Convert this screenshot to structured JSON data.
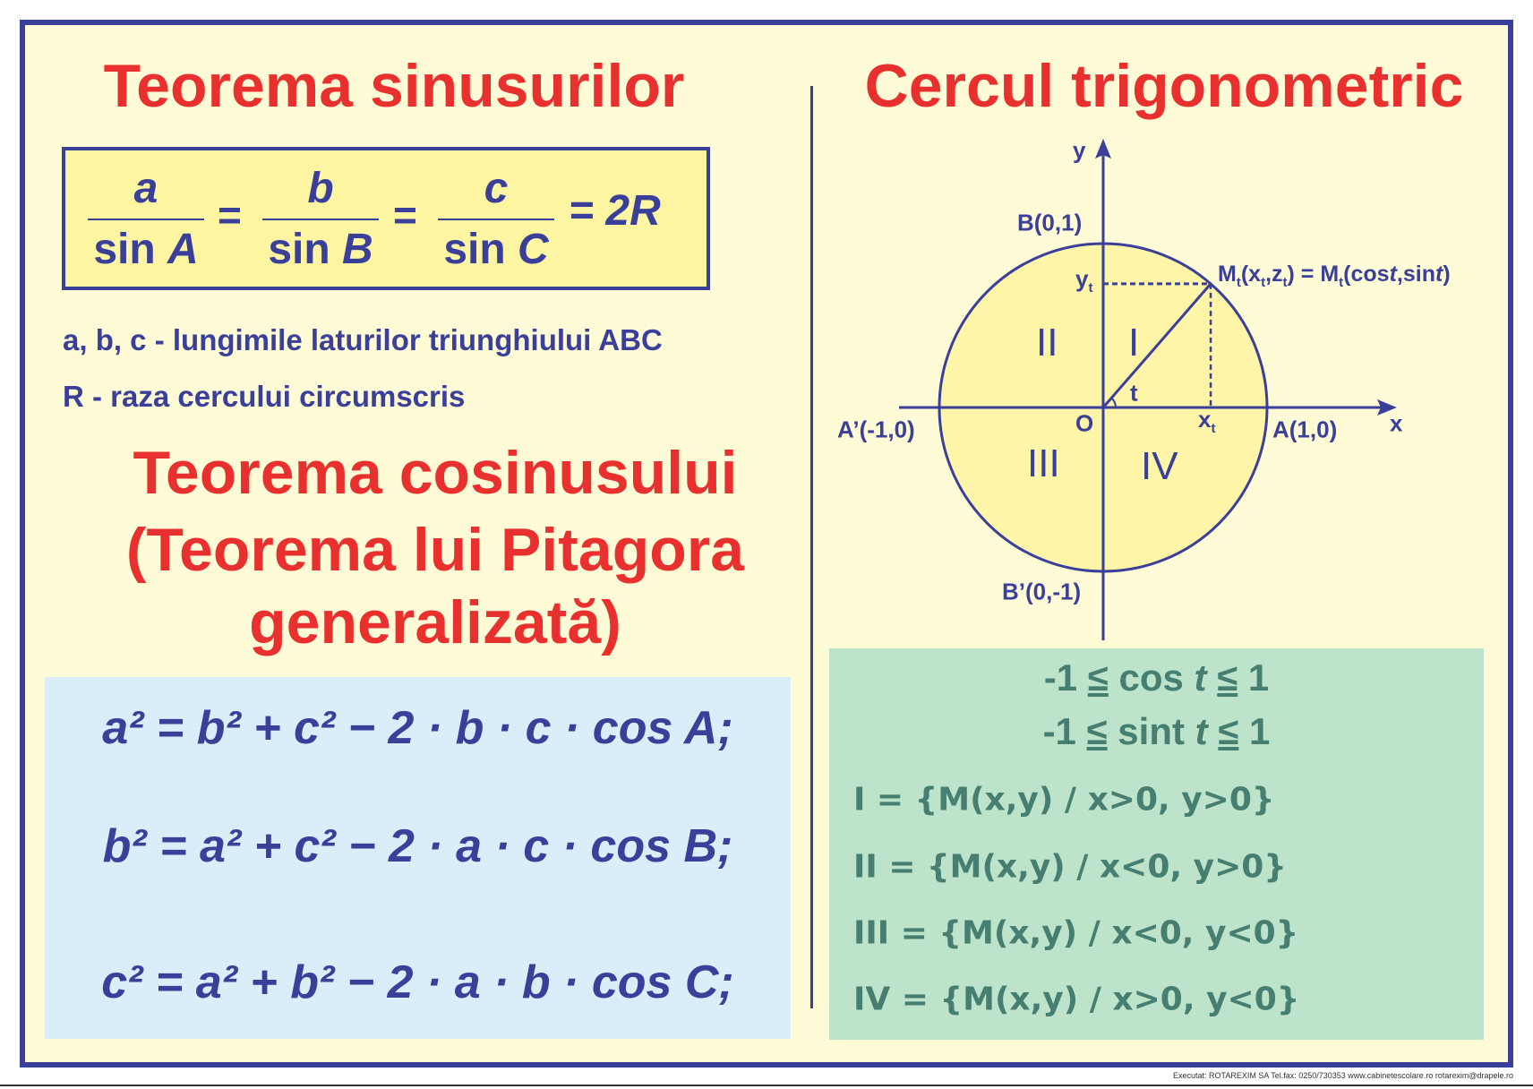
{
  "colors": {
    "border": "#3a3f9a",
    "background": "#fffbd6",
    "title": "#e8312f",
    "text": "#3a3f9a",
    "sine_box": "#fdf5a2",
    "cosine_box": "#d9eef8",
    "circle_box": "#bde3cb",
    "circle_box_text": "#467f72",
    "circle_fill": "#fff5a8"
  },
  "sine": {
    "title": "Teorema sinusurilor",
    "fractions": [
      {
        "num": "a",
        "den_fn": "sin",
        "den_var": "A"
      },
      {
        "num": "b",
        "den_fn": "sin",
        "den_var": "B"
      },
      {
        "num": "c",
        "den_fn": "sin",
        "den_var": "C"
      }
    ],
    "equals": "=",
    "result": "= 2R",
    "desc1": "a, b, c -  lungimile laturilor triunghiului ABC",
    "desc2": "R - raza cercului circumscris"
  },
  "cosine": {
    "title_lines": [
      "Teorema cosinusului",
      "(Teorema lui Pitagora",
      "generalizată)"
    ],
    "formulas": [
      "a² = b² + c² − 2 · b · c · cos A;",
      "b² = a² + c² − 2 · a · c · cos B;",
      "c² = a² + b² − 2 · a · b · cos C;"
    ]
  },
  "circle": {
    "title": "Cercul trigonometric",
    "labels": {
      "y": "y",
      "x": "x",
      "B": "B(0,1)",
      "B_prime": "B’(0,-1)",
      "A": "A(1,0)",
      "A_prime": "A’(-1,0)",
      "O": "O",
      "yt": "y",
      "xt": "x",
      "sub_t": "t",
      "t": "t",
      "M": "M",
      "M_rest": "(x",
      "M_rest2": ",z",
      "M_rest3": ") = M",
      "M_rest4": "(cos",
      "M_t_it": "t",
      "M_rest5": ",sin",
      "M_rest6": ")"
    },
    "quadrants": {
      "I": "I",
      "II": "II",
      "III": "III",
      "IV": "IV"
    },
    "angle_deg": 49,
    "bounds": [
      {
        "pre": "-1 ",
        "le": "≤",
        "mid": " cos ",
        "t": "t",
        "le2": "≤",
        "post": " 1"
      },
      {
        "pre": "-1 ",
        "le": "≤",
        "mid": " sint ",
        "t": "t",
        "le2": "≤",
        "post": " 1"
      }
    ],
    "sets": [
      "I = {M(x,y) / x>0, y>0}",
      "II = {M(x,y) / x<0, y>0}",
      "III = {M(x,y) / x<0, y<0}",
      "IV = {M(x,y) / x>0, y<0}"
    ]
  },
  "footer": "Executat: ROTAREXIM SA  Tel.fax: 0250/730353   www.cabinetescolare.ro   rotarexim@drapele.ro"
}
